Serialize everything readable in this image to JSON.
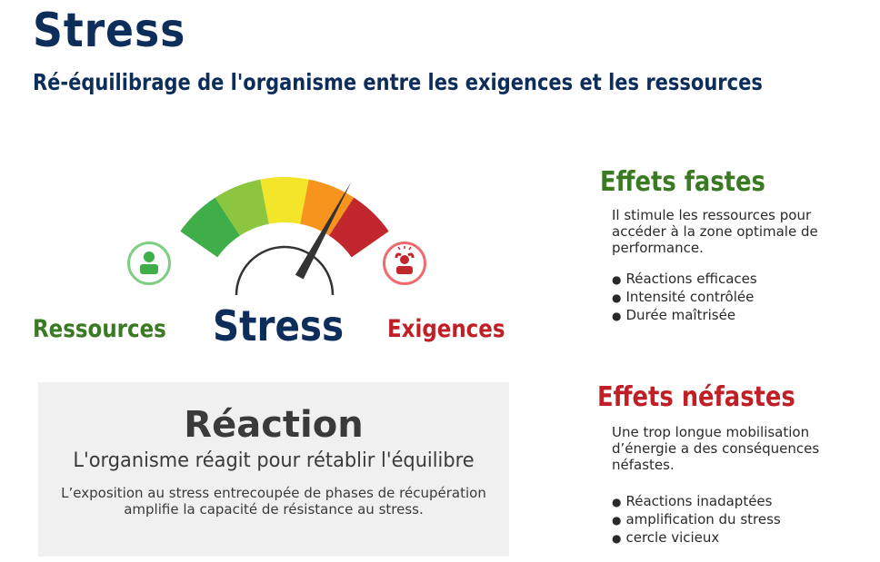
{
  "header": {
    "title": "Stress",
    "subtitle": "Ré-équilibrage de l'organisme entre les exigences et les ressources"
  },
  "gauge": {
    "label_left": "Ressources",
    "label_center": "Stress",
    "label_right": "Exigences",
    "level_fraction": 0.76,
    "segment_colors": [
      "#3fae49",
      "#8cc63f",
      "#f2e52a",
      "#f7941d",
      "#c1272d"
    ],
    "left_icon": "person-icon",
    "right_icon": "stressed-person-icon"
  },
  "reaction": {
    "title": "Réaction",
    "subtitle": "L'organisme réagit pour rétablir l'équilibre",
    "text": "L’exposition au stress entrecoupée de phases de récupération amplifie la capacité de résistance au stress."
  },
  "effets_fastes": {
    "title": "Effets fastes",
    "text": "Il stimule les ressources pour accéder à la zone optimale de performance.",
    "items": [
      "Réactions efficaces",
      "Intensité contrôlée",
      "Durée maîtrisée"
    ]
  },
  "effets_nefastes": {
    "title": "Effets néfastes",
    "text": "Une trop longue mobilisation d’énergie a des conséquences néfastes.",
    "items": [
      "Réactions inadaptées",
      "amplification du stress",
      "cercle vicieux"
    ]
  },
  "colors": {
    "navy": "#0d2d5a",
    "green": "#3a7a23",
    "red": "#c01f26",
    "box_bg": "#f0f0f0"
  }
}
